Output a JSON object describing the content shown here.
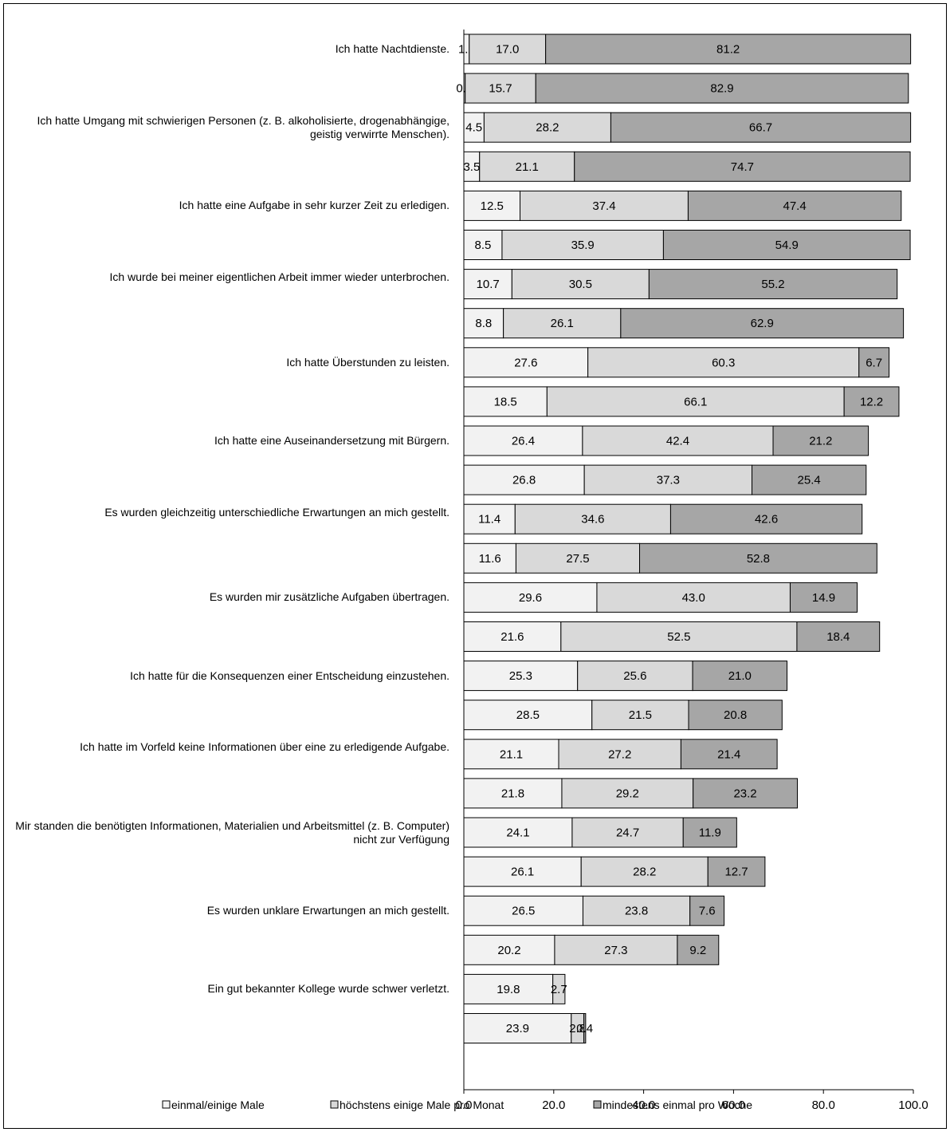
{
  "chart_data": {
    "type": "bar",
    "orientation": "horizontal",
    "stacked": true,
    "xlim": [
      0,
      100
    ],
    "xticks": [
      "0.0",
      "20.0",
      "40.0",
      "60.0",
      "80.0",
      "100.0"
    ],
    "grid": false,
    "legend_position": "bottom",
    "series": [
      {
        "name": "einmal/einige Male",
        "color": "#f2f2f2"
      },
      {
        "name": "höchstens einige Male pro Monat",
        "color": "#d9d9d9"
      },
      {
        "name": "mindestens einmal pro Woche",
        "color": "#a6a6a6"
      }
    ],
    "categories": [
      {
        "label": "Ich hatte Nachtdienste.",
        "bars": [
          [
            1.2,
            17.0,
            81.2
          ],
          [
            0.3,
            15.7,
            82.9
          ]
        ]
      },
      {
        "label": "Ich hatte Umgang mit schwierigen Personen (z. B. alkoholisierte, drogenabhängige, geistig verwirrte Menschen).",
        "bars": [
          [
            4.5,
            28.2,
            66.7
          ],
          [
            3.5,
            21.1,
            74.7
          ]
        ]
      },
      {
        "label": "Ich hatte eine Aufgabe in sehr kurzer Zeit zu erledigen.",
        "bars": [
          [
            12.5,
            37.4,
            47.4
          ],
          [
            8.5,
            35.9,
            54.9
          ]
        ]
      },
      {
        "label": "Ich wurde bei meiner eigentlichen Arbeit immer wieder unterbrochen.",
        "bars": [
          [
            10.7,
            30.5,
            55.2
          ],
          [
            8.8,
            26.1,
            62.9
          ]
        ]
      },
      {
        "label": "Ich hatte Überstunden zu leisten.",
        "bars": [
          [
            27.6,
            60.3,
            6.7
          ],
          [
            18.5,
            66.1,
            12.2
          ]
        ]
      },
      {
        "label": "Ich hatte eine Auseinandersetzung mit Bürgern.",
        "bars": [
          [
            26.4,
            42.4,
            21.2
          ],
          [
            26.8,
            37.3,
            25.4
          ]
        ]
      },
      {
        "label": "Es wurden gleichzeitig unterschiedliche Erwartungen an mich gestellt.",
        "bars": [
          [
            11.4,
            34.6,
            42.6
          ],
          [
            11.6,
            27.5,
            52.8
          ]
        ]
      },
      {
        "label": "Es wurden mir zusätzliche Aufgaben übertragen.",
        "bars": [
          [
            29.6,
            43.0,
            14.9
          ],
          [
            21.6,
            52.5,
            18.4
          ]
        ]
      },
      {
        "label": "Ich hatte für die Konsequenzen einer Entscheidung einzustehen.",
        "bars": [
          [
            25.3,
            25.6,
            21.0
          ],
          [
            28.5,
            21.5,
            20.8
          ]
        ]
      },
      {
        "label": "Ich hatte im Vorfeld keine Informationen über eine zu erledigende Aufgabe.",
        "bars": [
          [
            21.1,
            27.2,
            21.4
          ],
          [
            21.8,
            29.2,
            23.2
          ]
        ]
      },
      {
        "label": "Mir standen die benötigten Informationen, Materialien und Arbeitsmittel (z. B. Computer) nicht zur Verfügung",
        "bars": [
          [
            24.1,
            24.7,
            11.9
          ],
          [
            26.1,
            28.2,
            12.7
          ]
        ]
      },
      {
        "label": "Es wurden unklare Erwartungen an mich gestellt.",
        "bars": [
          [
            26.5,
            23.8,
            7.6
          ],
          [
            20.2,
            27.3,
            9.2
          ]
        ]
      },
      {
        "label": "Ein gut bekannter Kollege wurde schwer verletzt.",
        "bars": [
          [
            19.8,
            2.7,
            0.0
          ],
          [
            23.9,
            2.8,
            0.4
          ]
        ]
      }
    ]
  }
}
